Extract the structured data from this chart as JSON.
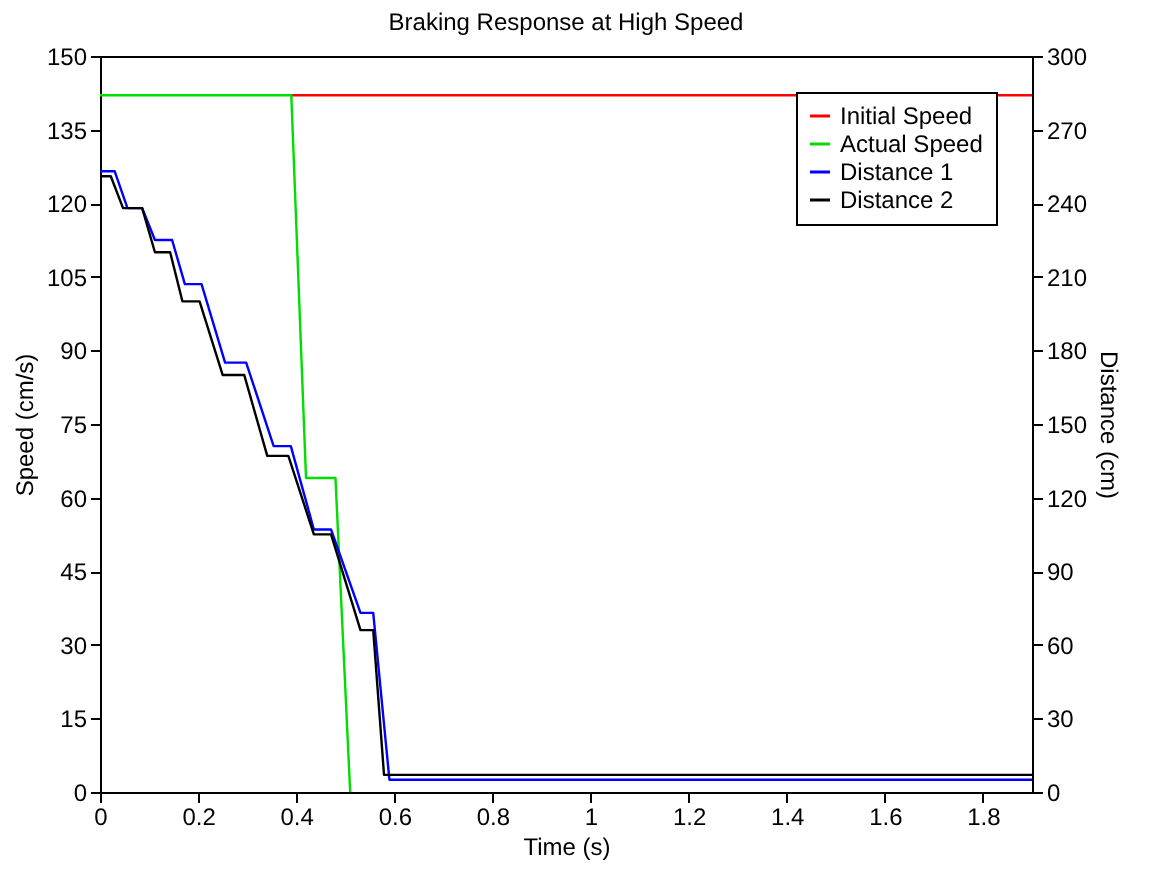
{
  "chart_data": {
    "type": "line",
    "title": "Braking Response at High Speed",
    "xlabel": "Time (s)",
    "ylabel": "Speed (cm/s)",
    "y2label": "Distance (cm)",
    "xlim": [
      0,
      1.9
    ],
    "xticks": [
      0,
      0.2,
      0.4,
      0.6,
      0.8,
      1,
      1.2,
      1.4,
      1.6,
      1.8
    ],
    "ylim": [
      0,
      150
    ],
    "yticks": [
      0,
      15,
      30,
      45,
      60,
      75,
      90,
      105,
      120,
      135,
      150
    ],
    "y2lim": [
      0,
      300
    ],
    "y2ticks": [
      0,
      30,
      60,
      90,
      120,
      150,
      180,
      210,
      240,
      270,
      300
    ],
    "legend": "top right",
    "grid": false,
    "marker": "none",
    "line_style": "solid",
    "series": [
      {
        "name": "Initial Speed",
        "color": "#ff0000",
        "x": [
          0.39,
          1.9
        ],
        "values": [
          142,
          142
        ]
      },
      {
        "name": "Actual Speed",
        "color": "#00dd00",
        "x": [
          0,
          0.39,
          0.42,
          0.48,
          0.51
        ],
        "values": [
          142,
          142,
          64,
          64,
          0
        ]
      },
      {
        "name": "Distance 1",
        "color": "#0000ff",
        "axis": "y2",
        "x": [
          0,
          0.03,
          0.056,
          0.086,
          0.112,
          0.147,
          0.173,
          0.207,
          0.255,
          0.298,
          0.354,
          0.389,
          0.436,
          0.471,
          0.531,
          0.557,
          0.59,
          1.9
        ],
        "values": [
          253,
          253,
          238,
          238,
          225,
          225,
          207,
          207,
          175,
          175,
          141,
          141,
          107,
          107,
          73,
          73,
          5,
          5
        ]
      },
      {
        "name": "Distance 2",
        "color": "#000000",
        "axis": "y2",
        "x": [
          0,
          0.022,
          0.047,
          0.086,
          0.112,
          0.143,
          0.168,
          0.203,
          0.25,
          0.294,
          0.341,
          0.384,
          0.436,
          0.471,
          0.531,
          0.557,
          0.579,
          1.9
        ],
        "values": [
          251,
          251,
          238,
          238,
          220,
          220,
          200,
          200,
          170,
          170,
          137,
          137,
          105,
          105,
          66,
          66,
          7,
          7
        ]
      }
    ]
  }
}
